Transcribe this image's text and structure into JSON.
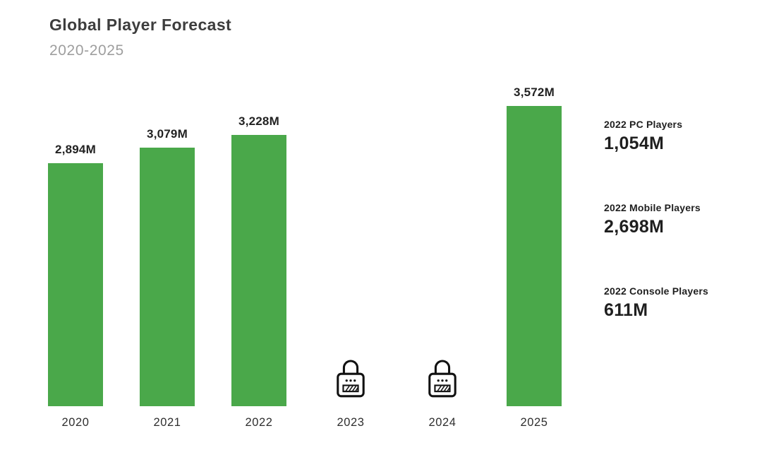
{
  "chart_data": {
    "type": "bar",
    "title": "Global Player Forecast",
    "subtitle": "2020-2025",
    "categories": [
      "2020",
      "2021",
      "2022",
      "2023",
      "2024",
      "2025"
    ],
    "values": [
      2894,
      3079,
      3228,
      null,
      null,
      3572
    ],
    "value_labels": [
      "2,894M",
      "3,079M",
      "3,228M",
      null,
      null,
      "3,572M"
    ],
    "locked": [
      false,
      false,
      false,
      true,
      true,
      false
    ],
    "unit": "M",
    "bar_color": "#4aa84a",
    "ylim": [
      0,
      3800
    ],
    "grid": false,
    "legend": false,
    "xlabel": "",
    "ylabel": ""
  },
  "side_stats": [
    {
      "label": "2022 PC Players",
      "value": "1,054M"
    },
    {
      "label": "2022 Mobile Players",
      "value": "2,698M"
    },
    {
      "label": "2022 Console Players",
      "value": "611M"
    }
  ],
  "icons": {
    "locked_year": "lock-icon"
  },
  "colors": {
    "bar": "#4aa84a",
    "title": "#3d3d3d",
    "subtitle": "#9e9e9e",
    "text": "#1f1f1f"
  }
}
